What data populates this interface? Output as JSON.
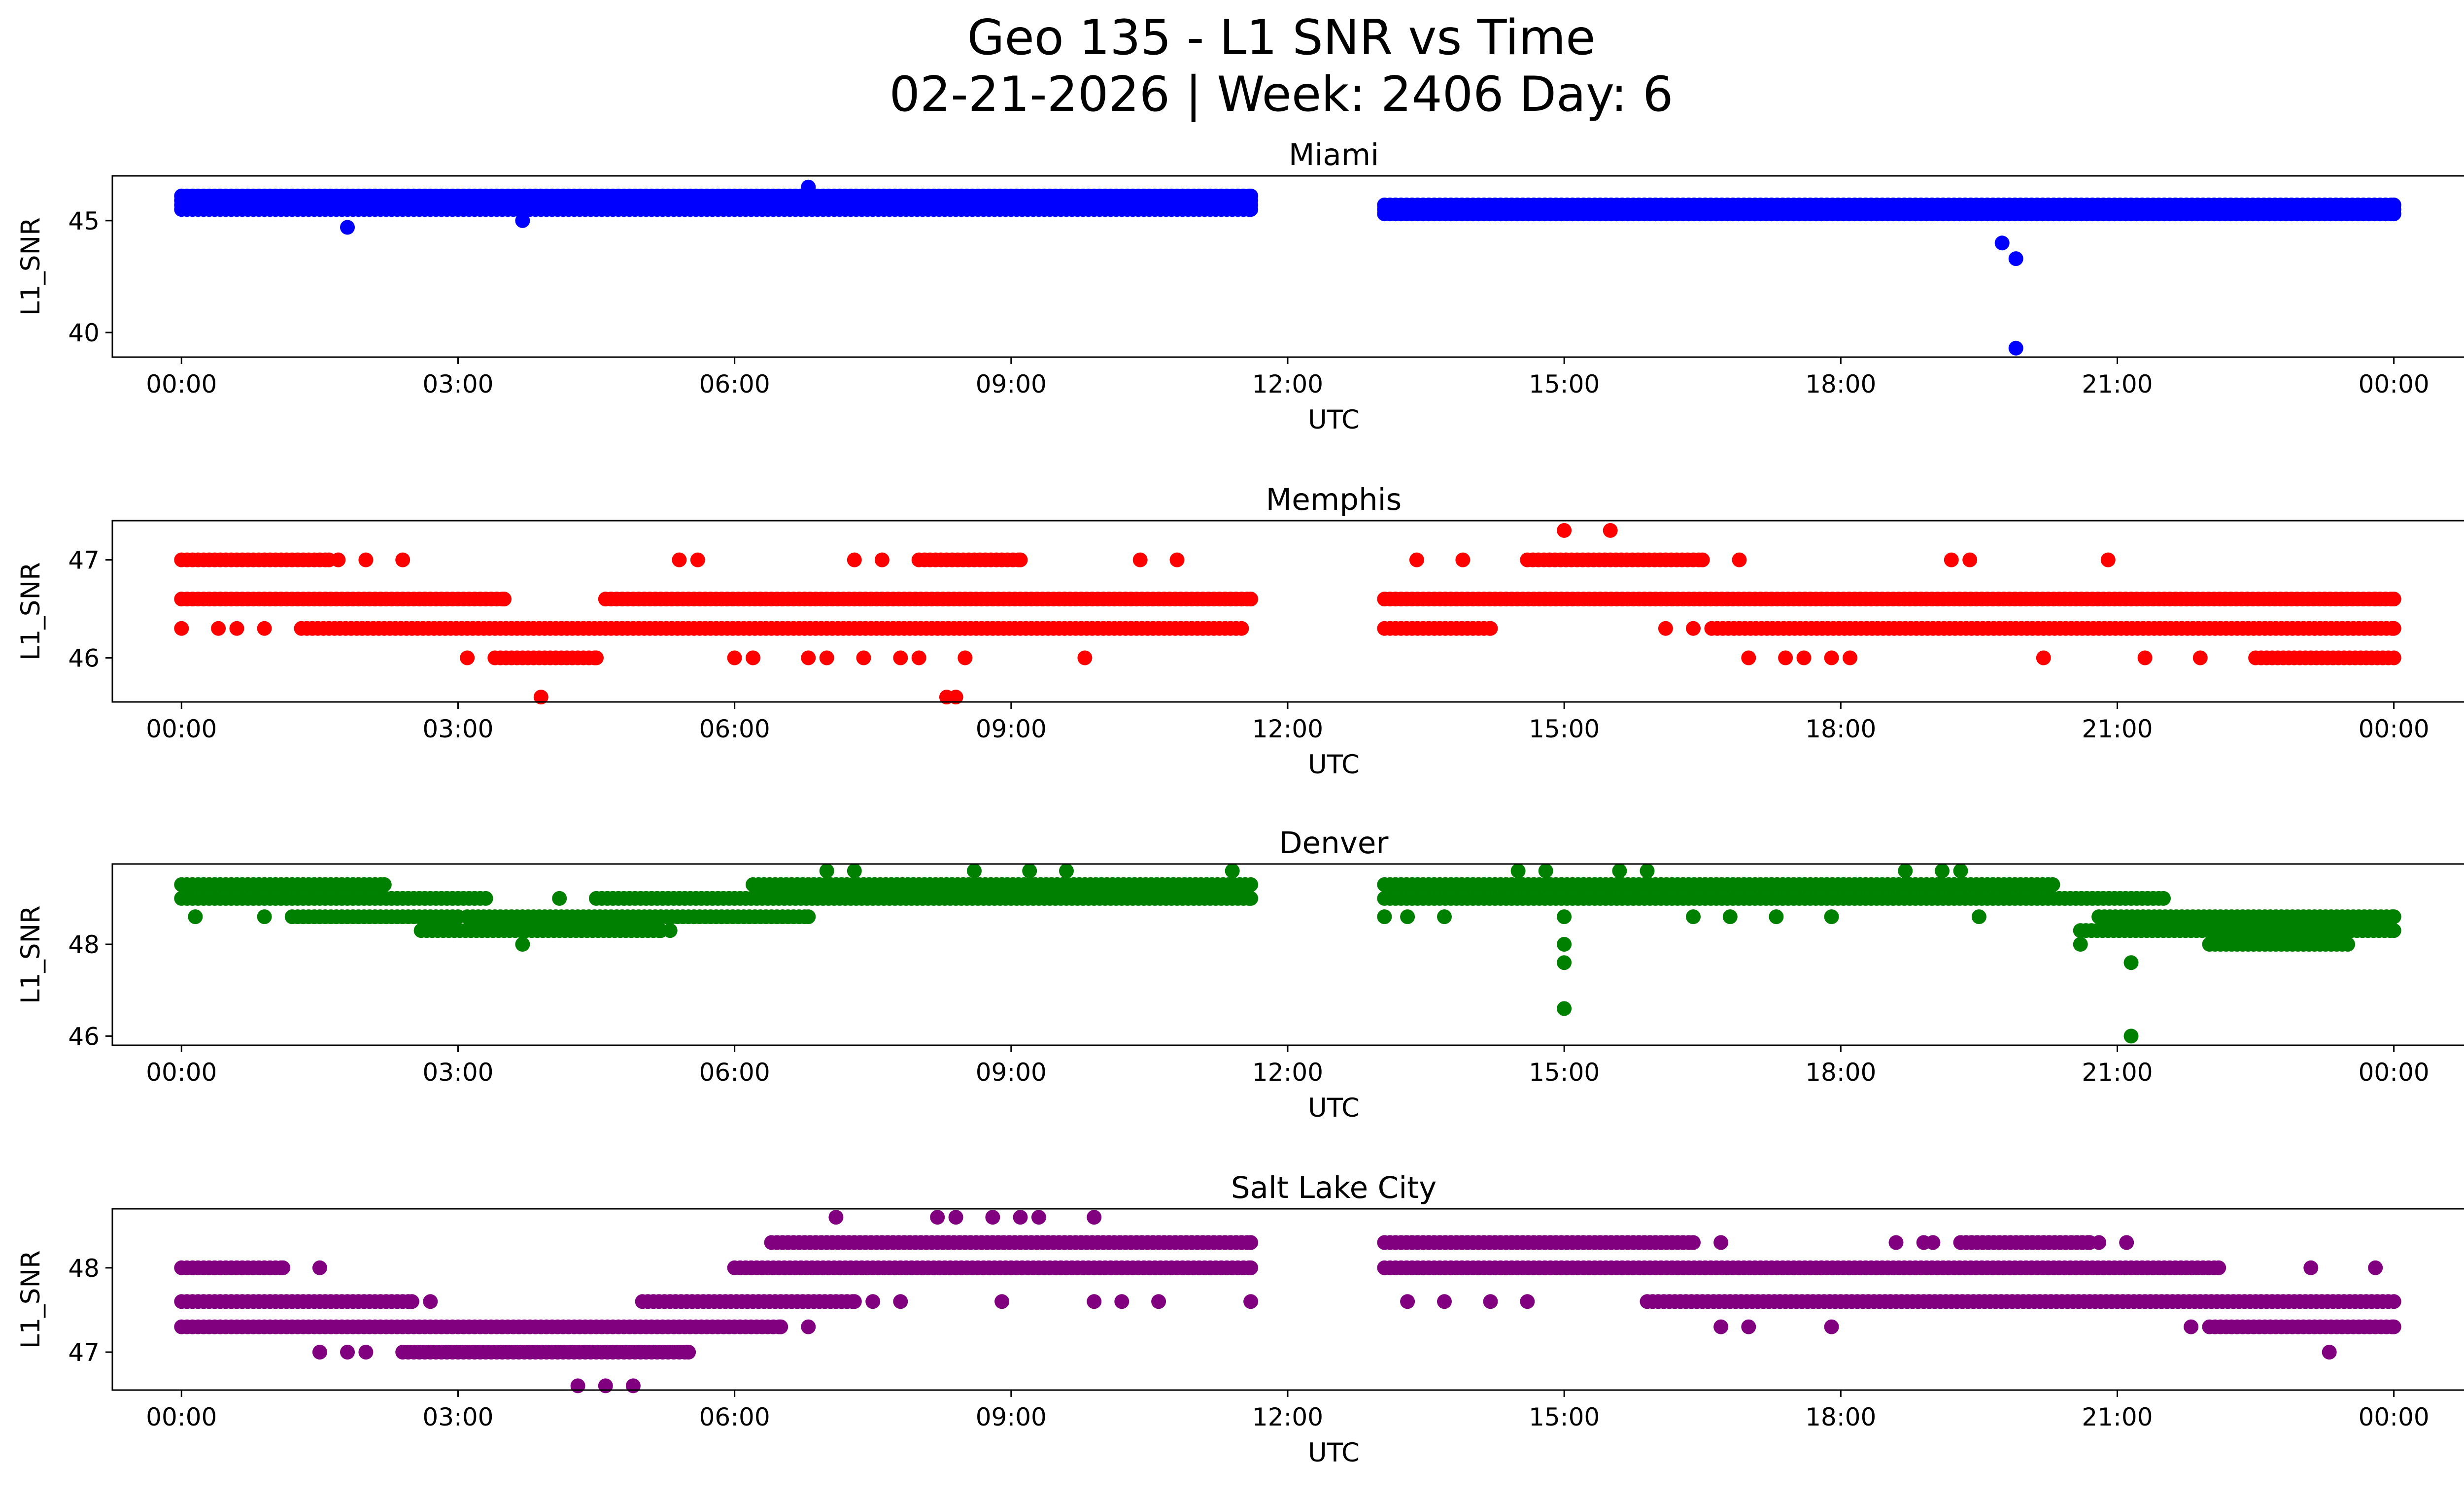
{
  "figure": {
    "title_line1": "Geo 135 - L1 SNR vs Time",
    "title_line2": "02-21-2026 | Week: 2406 Day: 6"
  },
  "chart_data": [
    {
      "type": "scatter",
      "title": "Miami",
      "xlabel": "UTC",
      "ylabel": "L1_SNR",
      "color": "#0000ff",
      "xlim_hours": [
        -0.75,
        25.75
      ],
      "ylim": [
        38.9,
        47.0
      ],
      "xticks": [
        0,
        3,
        6,
        9,
        12,
        15,
        18,
        21,
        24
      ],
      "xtick_labels": [
        "00:00",
        "03:00",
        "06:00",
        "09:00",
        "12:00",
        "15:00",
        "18:00",
        "21:00",
        "00:00"
      ],
      "yticks": [
        40,
        45
      ],
      "ytick_labels": [
        "40",
        "45"
      ],
      "bands": [
        {
          "start": 0.0,
          "end": 11.6,
          "values": [
            45.5,
            45.7,
            45.9,
            46.1
          ]
        },
        {
          "start": 13.05,
          "end": 24.0,
          "values": [
            45.3,
            45.5,
            45.7
          ]
        }
      ],
      "outliers": [
        [
          1.8,
          44.7
        ],
        [
          3.7,
          45.0
        ],
        [
          6.8,
          46.5
        ],
        [
          19.75,
          44.0
        ],
        [
          19.9,
          43.3
        ],
        [
          19.9,
          39.3
        ]
      ]
    },
    {
      "type": "scatter",
      "title": "Memphis",
      "xlabel": "UTC",
      "ylabel": "L1_SNR",
      "color": "#ff0000",
      "xlim_hours": [
        -0.75,
        25.75
      ],
      "ylim": [
        45.55,
        47.4
      ],
      "xticks": [
        0,
        3,
        6,
        9,
        12,
        15,
        18,
        21,
        24
      ],
      "xtick_labels": [
        "00:00",
        "03:00",
        "06:00",
        "09:00",
        "12:00",
        "15:00",
        "18:00",
        "21:00",
        "00:00"
      ],
      "yticks": [
        46,
        47
      ],
      "ytick_labels": [
        "46",
        "47"
      ],
      "bands": [
        {
          "start": 0.0,
          "end": 3.5,
          "values": [
            46.6
          ]
        },
        {
          "start": 4.6,
          "end": 11.6,
          "values": [
            46.6
          ]
        },
        {
          "start": 1.3,
          "end": 11.5,
          "values": [
            46.3
          ]
        },
        {
          "start": 13.05,
          "end": 24.0,
          "values": [
            46.6
          ]
        },
        {
          "start": 13.05,
          "end": 14.2,
          "values": [
            46.3
          ]
        },
        {
          "start": 16.6,
          "end": 24.0,
          "values": [
            46.3
          ]
        },
        {
          "start": 14.6,
          "end": 16.5,
          "values": [
            47.0
          ]
        },
        {
          "start": 3.4,
          "end": 4.5,
          "values": [
            46.0
          ]
        },
        {
          "start": 22.5,
          "end": 24.0,
          "values": [
            46.0
          ]
        },
        {
          "start": 8.0,
          "end": 9.1,
          "values": [
            47.0
          ]
        },
        {
          "start": 0.0,
          "end": 1.6,
          "values": [
            47.0
          ]
        }
      ],
      "outliers": [
        [
          0.0,
          46.3
        ],
        [
          0.4,
          46.3
        ],
        [
          0.6,
          46.3
        ],
        [
          0.9,
          46.3
        ],
        [
          3.1,
          46.0
        ],
        [
          3.9,
          45.6
        ],
        [
          5.4,
          47.0
        ],
        [
          5.6,
          47.0
        ],
        [
          6.0,
          46.0
        ],
        [
          6.2,
          46.0
        ],
        [
          6.8,
          46.0
        ],
        [
          7.0,
          46.0
        ],
        [
          7.4,
          46.0
        ],
        [
          7.8,
          46.0
        ],
        [
          8.0,
          46.0
        ],
        [
          8.3,
          45.6
        ],
        [
          8.4,
          45.6
        ],
        [
          8.5,
          46.0
        ],
        [
          9.8,
          46.0
        ],
        [
          10.4,
          47.0
        ],
        [
          10.8,
          47.0
        ],
        [
          7.3,
          47.0
        ],
        [
          7.6,
          47.0
        ],
        [
          1.7,
          47.0
        ],
        [
          2.0,
          47.0
        ],
        [
          2.4,
          47.0
        ],
        [
          13.4,
          47.0
        ],
        [
          13.9,
          47.0
        ],
        [
          15.0,
          47.3
        ],
        [
          15.5,
          47.3
        ],
        [
          16.9,
          47.0
        ],
        [
          19.2,
          47.0
        ],
        [
          19.4,
          47.0
        ],
        [
          20.9,
          47.0
        ],
        [
          17.0,
          46.0
        ],
        [
          17.4,
          46.0
        ],
        [
          20.2,
          46.0
        ],
        [
          21.3,
          46.0
        ],
        [
          21.9,
          46.0
        ],
        [
          17.6,
          46.0
        ],
        [
          17.9,
          46.0
        ],
        [
          18.1,
          46.0
        ],
        [
          16.1,
          46.3
        ],
        [
          16.4,
          46.3
        ],
        [
          23.8,
          46.6
        ]
      ]
    },
    {
      "type": "scatter",
      "title": "Denver",
      "xlabel": "UTC",
      "ylabel": "L1_SNR",
      "color": "#008000",
      "xlim_hours": [
        -0.75,
        25.75
      ],
      "ylim": [
        45.8,
        49.75
      ],
      "xticks": [
        0,
        3,
        6,
        9,
        12,
        15,
        18,
        21,
        24
      ],
      "xtick_labels": [
        "00:00",
        "03:00",
        "06:00",
        "09:00",
        "12:00",
        "15:00",
        "18:00",
        "21:00",
        "00:00"
      ],
      "yticks": [
        46,
        48
      ],
      "ytick_labels": [
        "46",
        "48"
      ],
      "bands": [
        {
          "start": 0.0,
          "end": 3.3,
          "values": [
            49.0
          ]
        },
        {
          "start": 0.0,
          "end": 2.2,
          "values": [
            49.3
          ]
        },
        {
          "start": 1.2,
          "end": 3.0,
          "values": [
            48.6
          ]
        },
        {
          "start": 2.6,
          "end": 5.2,
          "values": [
            48.3
          ]
        },
        {
          "start": 3.1,
          "end": 6.8,
          "values": [
            48.6
          ]
        },
        {
          "start": 4.5,
          "end": 11.6,
          "values": [
            49.0
          ]
        },
        {
          "start": 6.2,
          "end": 11.6,
          "values": [
            49.3
          ]
        },
        {
          "start": 13.05,
          "end": 21.5,
          "values": [
            49.0
          ]
        },
        {
          "start": 13.05,
          "end": 20.3,
          "values": [
            49.3
          ]
        },
        {
          "start": 20.6,
          "end": 24.0,
          "values": [
            48.3
          ]
        },
        {
          "start": 20.8,
          "end": 24.0,
          "values": [
            48.6
          ]
        },
        {
          "start": 22.0,
          "end": 23.5,
          "values": [
            48.0
          ]
        }
      ],
      "outliers": [
        [
          0.15,
          48.6
        ],
        [
          0.9,
          48.6
        ],
        [
          3.7,
          48.0
        ],
        [
          4.1,
          49.0
        ],
        [
          5.3,
          48.3
        ],
        [
          13.05,
          48.6
        ],
        [
          13.3,
          48.6
        ],
        [
          13.7,
          48.6
        ],
        [
          14.5,
          49.6
        ],
        [
          14.8,
          49.6
        ],
        [
          15.0,
          48.6
        ],
        [
          15.0,
          48.0
        ],
        [
          15.0,
          47.6
        ],
        [
          15.0,
          46.6
        ],
        [
          15.6,
          49.6
        ],
        [
          15.9,
          49.6
        ],
        [
          16.4,
          48.6
        ],
        [
          18.7,
          49.6
        ],
        [
          19.1,
          49.6
        ],
        [
          19.3,
          49.6
        ],
        [
          19.5,
          48.6
        ],
        [
          20.6,
          48.0
        ],
        [
          20.6,
          48.3
        ],
        [
          21.15,
          47.6
        ],
        [
          21.15,
          46.0
        ],
        [
          7.0,
          49.6
        ],
        [
          7.3,
          49.6
        ],
        [
          8.6,
          49.6
        ],
        [
          9.2,
          49.6
        ],
        [
          9.6,
          49.6
        ],
        [
          11.4,
          49.6
        ],
        [
          16.8,
          48.6
        ],
        [
          17.3,
          48.6
        ],
        [
          17.9,
          48.6
        ]
      ]
    },
    {
      "type": "scatter",
      "title": "Salt Lake City",
      "xlabel": "UTC",
      "ylabel": "L1_SNR",
      "color": "#800080",
      "xlim_hours": [
        -0.75,
        25.75
      ],
      "ylim": [
        46.55,
        48.7
      ],
      "xticks": [
        0,
        3,
        6,
        9,
        12,
        15,
        18,
        21,
        24
      ],
      "xtick_labels": [
        "00:00",
        "03:00",
        "06:00",
        "09:00",
        "12:00",
        "15:00",
        "18:00",
        "21:00",
        "00:00"
      ],
      "yticks": [
        47,
        48
      ],
      "ytick_labels": [
        "47",
        "48"
      ],
      "bands": [
        {
          "start": 0.0,
          "end": 2.5,
          "values": [
            47.6
          ]
        },
        {
          "start": 0.0,
          "end": 6.5,
          "values": [
            47.3
          ]
        },
        {
          "start": 2.4,
          "end": 5.5,
          "values": [
            47.0
          ]
        },
        {
          "start": 5.0,
          "end": 7.3,
          "values": [
            47.6
          ]
        },
        {
          "start": 6.0,
          "end": 11.6,
          "values": [
            48.0
          ]
        },
        {
          "start": 6.4,
          "end": 11.6,
          "values": [
            48.3
          ]
        },
        {
          "start": 0.0,
          "end": 1.1,
          "values": [
            48.0
          ]
        },
        {
          "start": 13.05,
          "end": 22.1,
          "values": [
            48.0
          ]
        },
        {
          "start": 13.05,
          "end": 16.4,
          "values": [
            48.3
          ]
        },
        {
          "start": 15.9,
          "end": 24.0,
          "values": [
            47.6
          ]
        },
        {
          "start": 22.0,
          "end": 24.0,
          "values": [
            47.3
          ]
        },
        {
          "start": 19.3,
          "end": 20.7,
          "values": [
            48.3
          ]
        }
      ],
      "outliers": [
        [
          1.5,
          48.0
        ],
        [
          1.5,
          47.0
        ],
        [
          1.8,
          47.0
        ],
        [
          2.0,
          47.0
        ],
        [
          2.7,
          47.6
        ],
        [
          4.3,
          46.6
        ],
        [
          4.6,
          46.6
        ],
        [
          4.9,
          46.6
        ],
        [
          6.3,
          47.3
        ],
        [
          6.8,
          47.3
        ],
        [
          7.1,
          48.6
        ],
        [
          8.2,
          48.6
        ],
        [
          8.4,
          48.6
        ],
        [
          8.8,
          48.6
        ],
        [
          9.1,
          48.6
        ],
        [
          9.3,
          48.6
        ],
        [
          9.9,
          48.6
        ],
        [
          7.5,
          47.6
        ],
        [
          7.8,
          47.6
        ],
        [
          8.9,
          47.6
        ],
        [
          9.9,
          47.6
        ],
        [
          10.2,
          47.6
        ],
        [
          10.6,
          47.6
        ],
        [
          11.6,
          47.6
        ],
        [
          13.3,
          47.6
        ],
        [
          13.7,
          47.6
        ],
        [
          14.2,
          47.6
        ],
        [
          14.6,
          47.6
        ],
        [
          16.7,
          47.3
        ],
        [
          17.0,
          47.3
        ],
        [
          17.9,
          47.3
        ],
        [
          18.6,
          48.3
        ],
        [
          18.9,
          48.3
        ],
        [
          19.0,
          48.3
        ],
        [
          20.8,
          48.3
        ],
        [
          21.1,
          48.3
        ],
        [
          23.1,
          48.0
        ],
        [
          23.8,
          48.0
        ],
        [
          23.3,
          47.0
        ],
        [
          21.8,
          47.3
        ],
        [
          16.7,
          48.3
        ]
      ]
    }
  ]
}
